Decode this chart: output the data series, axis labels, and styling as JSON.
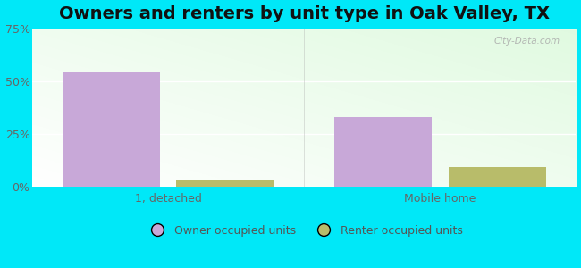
{
  "title": "Owners and renters by unit type in Oak Valley, TX",
  "categories": [
    "1, detached",
    "Mobile home"
  ],
  "owner_values": [
    54,
    33
  ],
  "renter_values": [
    3,
    9
  ],
  "owner_color": "#c8a8d8",
  "renter_color": "#b8bc6a",
  "ymax": 75,
  "yticks": [
    0,
    25,
    50,
    75
  ],
  "ytick_labels": [
    "0%",
    "25%",
    "50%",
    "75%"
  ],
  "background_outer": "#00e8f8",
  "title_fontsize": 14,
  "legend_owner": "Owner occupied units",
  "legend_renter": "Renter occupied units",
  "bar_width": 0.18,
  "group_positions": [
    0.3,
    0.8
  ],
  "watermark": "City-Data.com"
}
